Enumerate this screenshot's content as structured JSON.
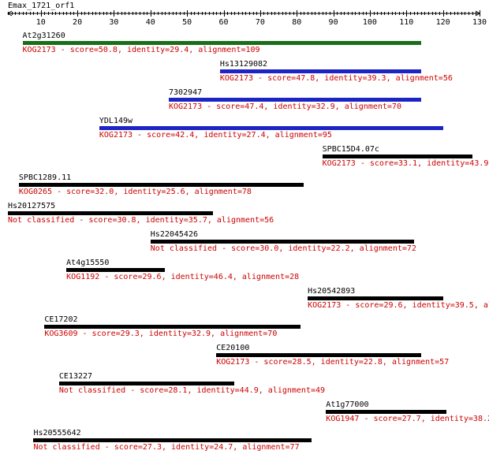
{
  "query": "Emax_1721_orf1",
  "axis": {
    "min": 1,
    "max": 130,
    "ticks": [
      10,
      20,
      30,
      40,
      50,
      60,
      70,
      80,
      90,
      100,
      110,
      120,
      130
    ]
  },
  "colors": {
    "green": "#1a6e1a",
    "blue": "#1c24c4",
    "black": "#000000",
    "desc": "#cc0000"
  },
  "hits": [
    {
      "name": "At2g31260",
      "start": 5,
      "end": 114,
      "color": "green",
      "desc": "KOG2173 - score=50.8, identity=29.4, alignment=109"
    },
    {
      "name": "Hs13129082",
      "start": 59,
      "end": 114,
      "color": "blue",
      "desc": "KOG2173 - score=47.8, identity=39.3, alignment=56"
    },
    {
      "name": "7302947",
      "start": 45,
      "end": 114,
      "color": "blue",
      "desc": "KOG2173 - score=47.4, identity=32.9, alignment=70"
    },
    {
      "name": "YDL149w",
      "start": 26,
      "end": 120,
      "color": "blue",
      "desc": "KOG2173 - score=42.4, identity=27.4, alignment=95"
    },
    {
      "name": "SPBC15D4.07c",
      "start": 87,
      "end": 128,
      "color": "black",
      "desc": "KOG2173 - score=33.1, identity=43.9,"
    },
    {
      "name": "SPBC1289.11",
      "start": 4,
      "end": 82,
      "color": "black",
      "desc": "KOG0265 - score=32.0, identity=25.6, alignment=78"
    },
    {
      "name": "Hs20127575",
      "start": 1,
      "end": 57,
      "color": "black",
      "desc": "Not classified - score=30.8, identity=35.7, alignment=56"
    },
    {
      "name": "Hs22045426",
      "start": 40,
      "end": 112,
      "color": "black",
      "desc": "Not classified - score=30.0, identity=22.2, alignment=72"
    },
    {
      "name": "At4g15550",
      "start": 17,
      "end": 44,
      "color": "black",
      "desc": "KOG1192 - score=29.6, identity=46.4, alignment=28"
    },
    {
      "name": "Hs20542893",
      "start": 83,
      "end": 120,
      "color": "black",
      "desc": "KOG2173 - score=29.6, identity=39.5, al"
    },
    {
      "name": "CE17202",
      "start": 11,
      "end": 81,
      "color": "black",
      "desc": "KOG3609 - score=29.3, identity=32.9, alignment=70"
    },
    {
      "name": "CE20100",
      "start": 58,
      "end": 114,
      "color": "black",
      "desc": "KOG2173 - score=28.5, identity=22.8, alignment=57"
    },
    {
      "name": "CE13227",
      "start": 15,
      "end": 63,
      "color": "black",
      "desc": "Not classified - score=28.1, identity=44.9, alignment=49"
    },
    {
      "name": "At1g77000",
      "start": 88,
      "end": 121,
      "color": "black",
      "desc": "KOG1947 - score=27.7, identity=38.2"
    },
    {
      "name": "Hs20555642",
      "start": 8,
      "end": 84,
      "color": "black",
      "desc": "Not classified - score=27.3, identity=24.7, alignment=77"
    }
  ]
}
